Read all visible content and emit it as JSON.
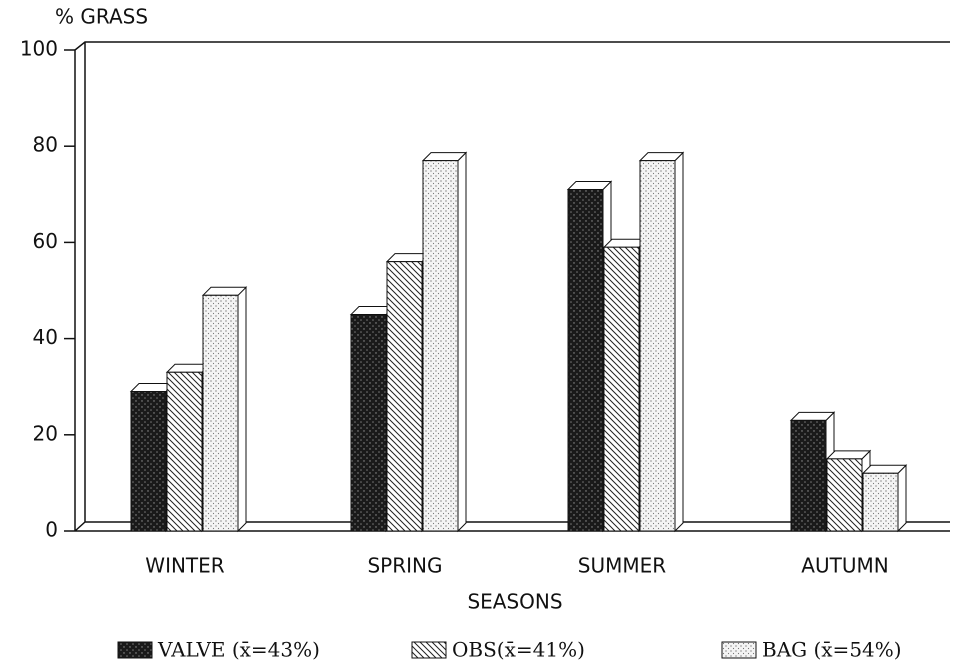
{
  "chart_data": {
    "type": "bar3d",
    "y_label": "% GRASS",
    "x_label": "SEASONS",
    "categories": [
      "WINTER",
      "SPRING",
      "SUMMER",
      "AUTUMN"
    ],
    "series": [
      {
        "name": "VALVE (x̄=43%)",
        "color": "#1a1a1a",
        "values": [
          29,
          45,
          71,
          23
        ]
      },
      {
        "name": "OBS(x̄=41%)",
        "color": "#ffffff",
        "values": [
          33,
          56,
          59,
          15
        ]
      },
      {
        "name": "BAG (x̄=54%)",
        "color": "#f4f4f4",
        "values": [
          49,
          77,
          77,
          12
        ]
      }
    ],
    "ylim": [
      0,
      100
    ],
    "yticks": [
      0,
      20,
      40,
      60,
      80,
      100
    ]
  }
}
